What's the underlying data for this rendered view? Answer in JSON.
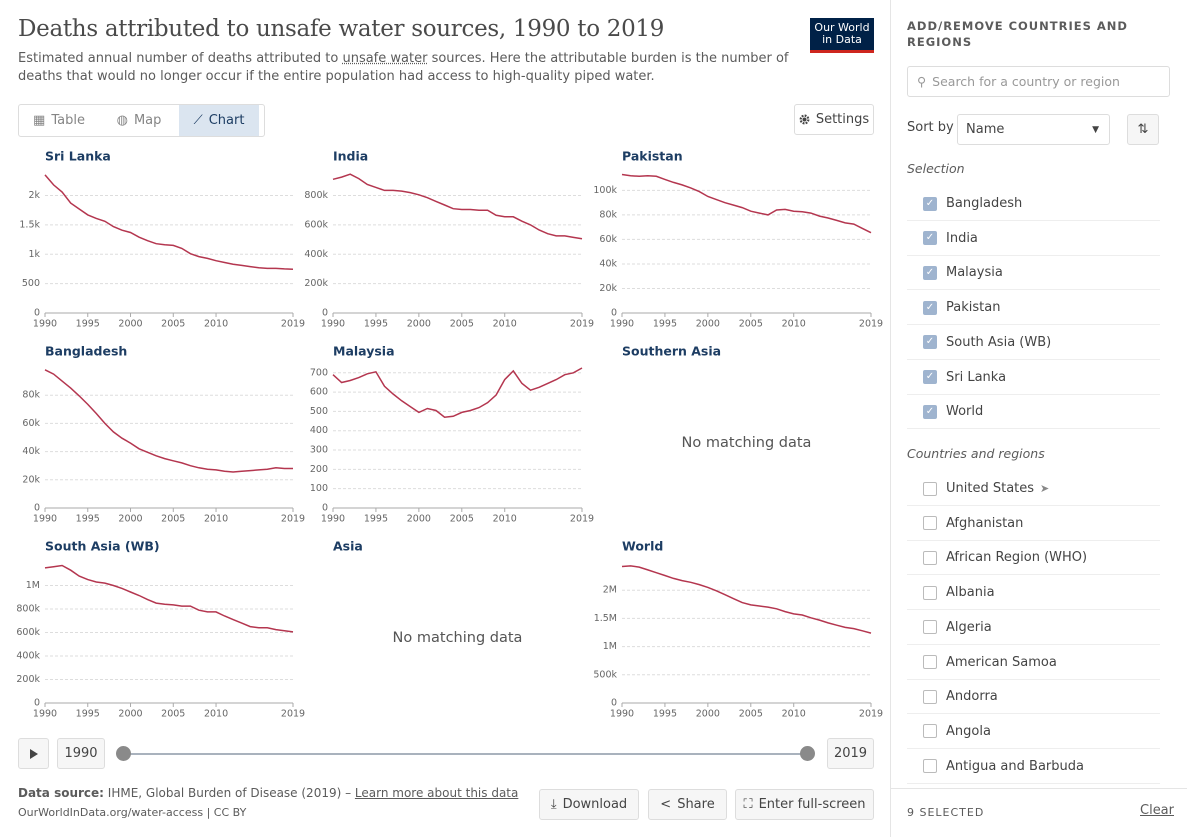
{
  "header": {
    "title": "Deaths attributed to unsafe water sources, 1990 to 2019",
    "subtitle_before": "Estimated annual number of deaths attributed to ",
    "subtitle_link": "unsafe water",
    "subtitle_after": " sources. Here the attributable burden is the number of deaths that would no longer occur if the entire population had access to high-quality piped water.",
    "logo": [
      "Our World",
      "in Data"
    ]
  },
  "tabs": [
    "Table",
    "Map",
    "Chart"
  ],
  "active_tab": 2,
  "settings_button": "Settings",
  "chart_data": [
    {
      "type": "line",
      "title": "Sri Lanka",
      "color": "#b4364f",
      "xlim": [
        1990,
        2019
      ],
      "xticks": [
        1990,
        1995,
        2000,
        2005,
        2010,
        2019
      ],
      "ylim": [
        0,
        2400
      ],
      "yticks": [
        0,
        500,
        {
          "value": 1000,
          "label": "1k"
        },
        {
          "value": 1500,
          "label": "1.5k"
        },
        {
          "value": 2000,
          "label": "2k"
        }
      ],
      "x": [
        1990,
        1991,
        1992,
        1993,
        1994,
        1995,
        1996,
        1997,
        1998,
        1999,
        2000,
        2001,
        2002,
        2003,
        2004,
        2005,
        2006,
        2007,
        2008,
        2009,
        2010,
        2011,
        2012,
        2013,
        2014,
        2015,
        2016,
        2017,
        2018,
        2019
      ],
      "values": [
        2350,
        2180,
        2060,
        1870,
        1770,
        1670,
        1610,
        1560,
        1470,
        1410,
        1370,
        1290,
        1230,
        1180,
        1160,
        1150,
        1100,
        1010,
        960,
        930,
        890,
        860,
        830,
        810,
        790,
        770,
        760,
        760,
        750,
        745
      ]
    },
    {
      "type": "line",
      "title": "India",
      "color": "#b4364f",
      "xlim": [
        1990,
        2019
      ],
      "xticks": [
        1990,
        1995,
        2000,
        2005,
        2010,
        2019
      ],
      "ylim": [
        0,
        960000
      ],
      "yticks": [
        0,
        {
          "value": 200000,
          "label": "200k"
        },
        {
          "value": 400000,
          "label": "400k"
        },
        {
          "value": 600000,
          "label": "600k"
        },
        {
          "value": 800000,
          "label": "800k"
        }
      ],
      "x": [
        1990,
        1991,
        1992,
        1993,
        1994,
        1995,
        1996,
        1997,
        1998,
        1999,
        2000,
        2001,
        2002,
        2003,
        2004,
        2005,
        2006,
        2007,
        2008,
        2009,
        2010,
        2011,
        2012,
        2013,
        2014,
        2015,
        2016,
        2017,
        2018,
        2019
      ],
      "values": [
        910000,
        925000,
        945000,
        915000,
        875000,
        855000,
        835000,
        835000,
        830000,
        820000,
        805000,
        785000,
        760000,
        735000,
        710000,
        705000,
        705000,
        700000,
        700000,
        665000,
        655000,
        655000,
        625000,
        600000,
        565000,
        540000,
        525000,
        525000,
        515000,
        505000
      ]
    },
    {
      "type": "line",
      "title": "Pakistan",
      "color": "#b4364f",
      "xlim": [
        1990,
        2019
      ],
      "xticks": [
        1990,
        1995,
        2000,
        2005,
        2010,
        2019
      ],
      "ylim": [
        0,
        115000
      ],
      "yticks": [
        0,
        {
          "value": 20000,
          "label": "20k"
        },
        {
          "value": 40000,
          "label": "40k"
        },
        {
          "value": 60000,
          "label": "60k"
        },
        {
          "value": 80000,
          "label": "80k"
        },
        {
          "value": 100000,
          "label": "100k"
        }
      ],
      "x": [
        1990,
        1991,
        1992,
        1993,
        1994,
        1995,
        1996,
        1997,
        1998,
        1999,
        2000,
        2001,
        2002,
        2003,
        2004,
        2005,
        2006,
        2007,
        2008,
        2009,
        2010,
        2011,
        2012,
        2013,
        2014,
        2015,
        2016,
        2017,
        2018,
        2019
      ],
      "values": [
        113000,
        112000,
        111500,
        112000,
        111500,
        109000,
        106500,
        104500,
        102000,
        99000,
        95000,
        92500,
        90000,
        88000,
        86000,
        83000,
        81500,
        80000,
        84000,
        84500,
        83000,
        82500,
        81500,
        79000,
        77500,
        75500,
        73500,
        72500,
        69000,
        65500
      ]
    },
    {
      "type": "line",
      "title": "Bangladesh",
      "color": "#b4364f",
      "xlim": [
        1990,
        2019
      ],
      "xticks": [
        1990,
        1995,
        2000,
        2005,
        2010,
        2019
      ],
      "ylim": [
        0,
        100000
      ],
      "yticks": [
        0,
        {
          "value": 20000,
          "label": "20k"
        },
        {
          "value": 40000,
          "label": "40k"
        },
        {
          "value": 60000,
          "label": "60k"
        },
        {
          "value": 80000,
          "label": "80k"
        }
      ],
      "x": [
        1990,
        1991,
        1992,
        1993,
        1994,
        1995,
        1996,
        1997,
        1998,
        1999,
        2000,
        2001,
        2002,
        2003,
        2004,
        2005,
        2006,
        2007,
        2008,
        2009,
        2010,
        2011,
        2012,
        2013,
        2014,
        2015,
        2016,
        2017,
        2018,
        2019
      ],
      "values": [
        98000,
        95000,
        90000,
        85000,
        79500,
        73500,
        67000,
        60000,
        54000,
        49500,
        46000,
        42000,
        39500,
        37000,
        35000,
        33500,
        32000,
        30000,
        28500,
        27500,
        27000,
        26000,
        25500,
        26000,
        26500,
        27000,
        27500,
        28500,
        28000,
        28000
      ]
    },
    {
      "type": "line",
      "title": "Malaysia",
      "color": "#b4364f",
      "xlim": [
        1990,
        2019
      ],
      "xticks": [
        1990,
        1995,
        2000,
        2005,
        2010,
        2019
      ],
      "ylim": [
        0,
        730
      ],
      "yticks": [
        0,
        100,
        200,
        300,
        400,
        500,
        600,
        700
      ],
      "x": [
        1990,
        1991,
        1992,
        1993,
        1994,
        1995,
        1996,
        1997,
        1998,
        1999,
        2000,
        2001,
        2002,
        2003,
        2004,
        2005,
        2006,
        2007,
        2008,
        2009,
        2010,
        2011,
        2012,
        2013,
        2014,
        2015,
        2016,
        2017,
        2018,
        2019
      ],
      "values": [
        690,
        650,
        660,
        675,
        695,
        705,
        630,
        590,
        555,
        525,
        495,
        515,
        505,
        470,
        475,
        495,
        505,
        520,
        545,
        585,
        665,
        710,
        645,
        610,
        625,
        645,
        665,
        690,
        700,
        725
      ]
    },
    {
      "type": "empty",
      "title": "Southern Asia",
      "message": "No matching data"
    },
    {
      "type": "line",
      "title": "South Asia (WB)",
      "color": "#b4364f",
      "xlim": [
        1990,
        2019
      ],
      "xticks": [
        1990,
        1995,
        2000,
        2005,
        2010,
        2019
      ],
      "ylim": [
        0,
        1200000
      ],
      "yticks": [
        0,
        {
          "value": 200000,
          "label": "200k"
        },
        {
          "value": 400000,
          "label": "400k"
        },
        {
          "value": 600000,
          "label": "600k"
        },
        {
          "value": 800000,
          "label": "800k"
        },
        {
          "value": 1000000,
          "label": "1M"
        }
      ],
      "x": [
        1990,
        1991,
        1992,
        1993,
        1994,
        1995,
        1996,
        1997,
        1998,
        1999,
        2000,
        2001,
        2002,
        2003,
        2004,
        2005,
        2006,
        2007,
        2008,
        2009,
        2010,
        2011,
        2012,
        2013,
        2014,
        2015,
        2016,
        2017,
        2018,
        2019
      ],
      "values": [
        1150000,
        1160000,
        1170000,
        1130000,
        1080000,
        1050000,
        1030000,
        1020000,
        1000000,
        975000,
        945000,
        915000,
        880000,
        850000,
        840000,
        835000,
        825000,
        825000,
        790000,
        775000,
        775000,
        740000,
        710000,
        680000,
        650000,
        640000,
        640000,
        625000,
        615000,
        605000
      ]
    },
    {
      "type": "empty",
      "title": "Asia",
      "message": "No matching data"
    },
    {
      "type": "line",
      "title": "World",
      "color": "#b4364f",
      "xlim": [
        1990,
        2019
      ],
      "xticks": [
        1990,
        1995,
        2000,
        2005,
        2010,
        2019
      ],
      "ylim": [
        0,
        2500000
      ],
      "yticks": [
        0,
        {
          "value": 500000,
          "label": "500k"
        },
        {
          "value": 1000000,
          "label": "1M"
        },
        {
          "value": 1500000,
          "label": "1.5M"
        },
        {
          "value": 2000000,
          "label": "2M"
        }
      ],
      "x": [
        1990,
        1991,
        1992,
        1993,
        1994,
        1995,
        1996,
        1997,
        1998,
        1999,
        2000,
        2001,
        2002,
        2003,
        2004,
        2005,
        2006,
        2007,
        2008,
        2009,
        2010,
        2011,
        2012,
        2013,
        2014,
        2015,
        2016,
        2017,
        2018,
        2019
      ],
      "values": [
        2420000,
        2430000,
        2410000,
        2360000,
        2310000,
        2260000,
        2210000,
        2170000,
        2140000,
        2100000,
        2050000,
        1990000,
        1920000,
        1850000,
        1780000,
        1740000,
        1720000,
        1700000,
        1670000,
        1620000,
        1580000,
        1560000,
        1510000,
        1470000,
        1420000,
        1380000,
        1340000,
        1320000,
        1280000,
        1240000
      ]
    }
  ],
  "timeline": {
    "start": "1990",
    "end": "2019"
  },
  "footer": {
    "source_label": "Data source:",
    "source": " IHME, Global Burden of Disease (2019) – ",
    "learn_more": "Learn more about this data",
    "url": "OurWorldInData.org/water-access | CC BY"
  },
  "buttons": [
    "Download",
    "Share",
    "Enter full-screen"
  ],
  "sidebar": {
    "heading": "ADD/REMOVE COUNTRIES AND REGIONS",
    "search_placeholder": "Search for a country or region",
    "sort_label": "Sort by",
    "sort_value": "Name",
    "selection_label": "Selection",
    "selected": [
      "Bangladesh",
      "India",
      "Malaysia",
      "Pakistan",
      "South Asia (WB)",
      "Sri Lanka",
      "World"
    ],
    "regions_label": "Countries and regions",
    "regions": [
      "United States",
      "Afghanistan",
      "African Region (WHO)",
      "Albania",
      "Algeria",
      "American Samoa",
      "Andorra",
      "Angola",
      "Antigua and Barbuda"
    ],
    "selected_count": "9 SELECTED",
    "clear": "Clear"
  }
}
